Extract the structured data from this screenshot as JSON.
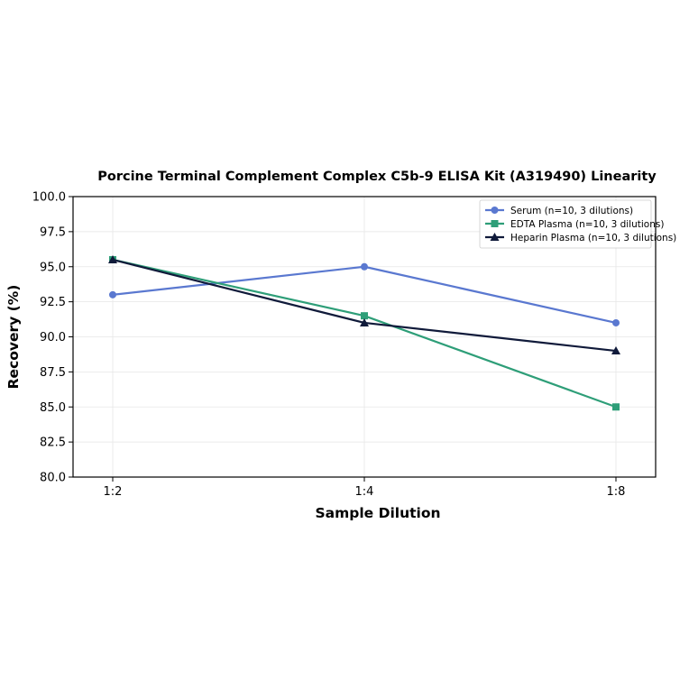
{
  "chart_data": {
    "type": "line",
    "title": "Porcine Terminal Complement Complex C5b-9 ELISA Kit (A319490) Linearity",
    "xlabel": "Sample Dilution",
    "ylabel": "Recovery (%)",
    "categories": [
      "1:2",
      "1:4",
      "1:8"
    ],
    "ylim": [
      80.0,
      100.0
    ],
    "yticks": [
      "80.0",
      "82.5",
      "85.0",
      "87.5",
      "90.0",
      "92.5",
      "95.0",
      "97.5",
      "100.0"
    ],
    "grid": true,
    "legend_position": "top-right",
    "series": [
      {
        "name": "Serum (n=10, 3 dilutions)",
        "values": [
          93.0,
          95.0,
          91.0
        ],
        "color": "#5a78d0",
        "marker": "circle"
      },
      {
        "name": "EDTA Plasma (n=10, 3 dilutions)",
        "values": [
          95.5,
          91.5,
          85.0
        ],
        "color": "#2e9e78",
        "marker": "square"
      },
      {
        "name": "Heparin Plasma (n=10, 3 dilutions)",
        "values": [
          95.5,
          91.0,
          89.0
        ],
        "color": "#101a3a",
        "marker": "triangle"
      }
    ]
  }
}
